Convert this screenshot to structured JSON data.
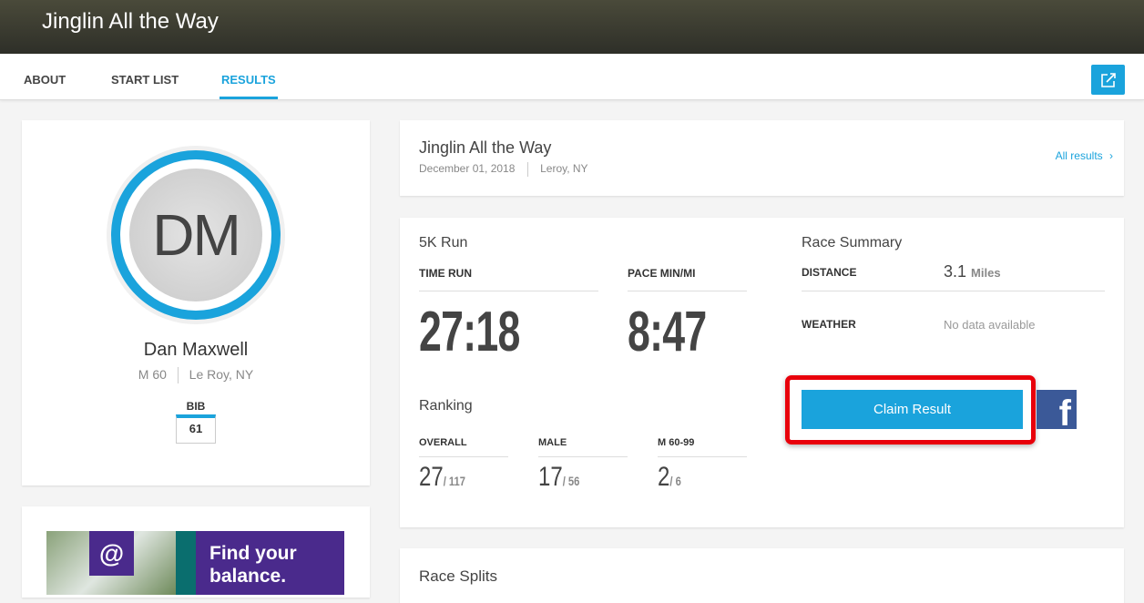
{
  "header": {
    "title": "Jinglin All the Way"
  },
  "nav": {
    "tabs": [
      {
        "label": "ABOUT"
      },
      {
        "label": "START LIST"
      },
      {
        "label": "RESULTS",
        "active": true
      }
    ],
    "share_icon": "share-icon"
  },
  "athlete": {
    "initials": "DM",
    "name": "Dan Maxwell",
    "gender_age": "M 60",
    "location": "Le Roy, NY",
    "bib_label": "BIB",
    "bib": "61"
  },
  "ad": {
    "text_line1": "Find your",
    "text_line2": "balance.",
    "logo": "@"
  },
  "event": {
    "title": "Jinglin All the Way",
    "date": "December 01, 2018",
    "location": "Leroy, NY",
    "all_results": "All results"
  },
  "result": {
    "race": "5K Run",
    "time_label": "TIME RUN",
    "time": "27:18",
    "pace_label": "PACE MIN/MI",
    "pace": "8:47",
    "ranking_title": "Ranking",
    "rankings": [
      {
        "label": "OVERALL",
        "place": "27",
        "total": "/ 117"
      },
      {
        "label": "MALE",
        "place": "17",
        "total": "/ 56"
      },
      {
        "label": "M 60-99",
        "place": "2",
        "total": "/ 6"
      }
    ]
  },
  "summary": {
    "title": "Race Summary",
    "distance_label": "DISTANCE",
    "distance": "3.1",
    "distance_unit": "Miles",
    "weather_label": "WEATHER",
    "weather": "No data available",
    "claim": "Claim Result"
  },
  "splits": {
    "title": "Race Splits"
  },
  "colors": {
    "accent": "#1aa3dc",
    "highlight": "#e8000b",
    "facebook": "#3b5998"
  }
}
